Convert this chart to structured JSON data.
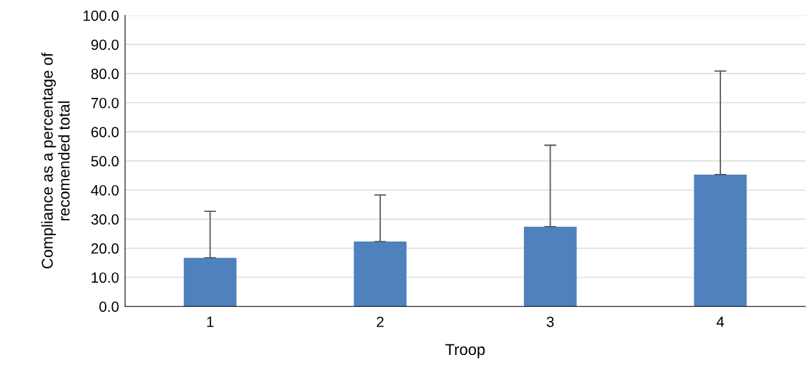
{
  "chart_data": {
    "type": "bar",
    "xlabel": "Troop",
    "ylabel": "Compliance as a percentage of\nrecomended total",
    "categories": [
      "1",
      "2",
      "3",
      "4"
    ],
    "values": [
      16.7,
      22.3,
      27.4,
      45.3
    ],
    "errors": [
      [
        16.7,
        32.7
      ],
      [
        22.3,
        38.3
      ],
      [
        27.4,
        55.4
      ],
      [
        45.3,
        80.9
      ]
    ],
    "color": "#4f81bd",
    "ylim": [
      0,
      100
    ],
    "yticks": [
      {
        "value": 0,
        "label": "0.0"
      },
      {
        "value": 10,
        "label": "10.0"
      },
      {
        "value": 20,
        "label": "20.0"
      },
      {
        "value": 30,
        "label": "30.0"
      },
      {
        "value": 40,
        "label": "40.0"
      },
      {
        "value": 50,
        "label": "50.0"
      },
      {
        "value": 60,
        "label": "60.0"
      },
      {
        "value": 70,
        "label": "70.0"
      },
      {
        "value": 80,
        "label": "80.0"
      },
      {
        "value": 90,
        "label": "90.0"
      },
      {
        "value": 100,
        "label": "100.0"
      }
    ],
    "grid": "y"
  }
}
